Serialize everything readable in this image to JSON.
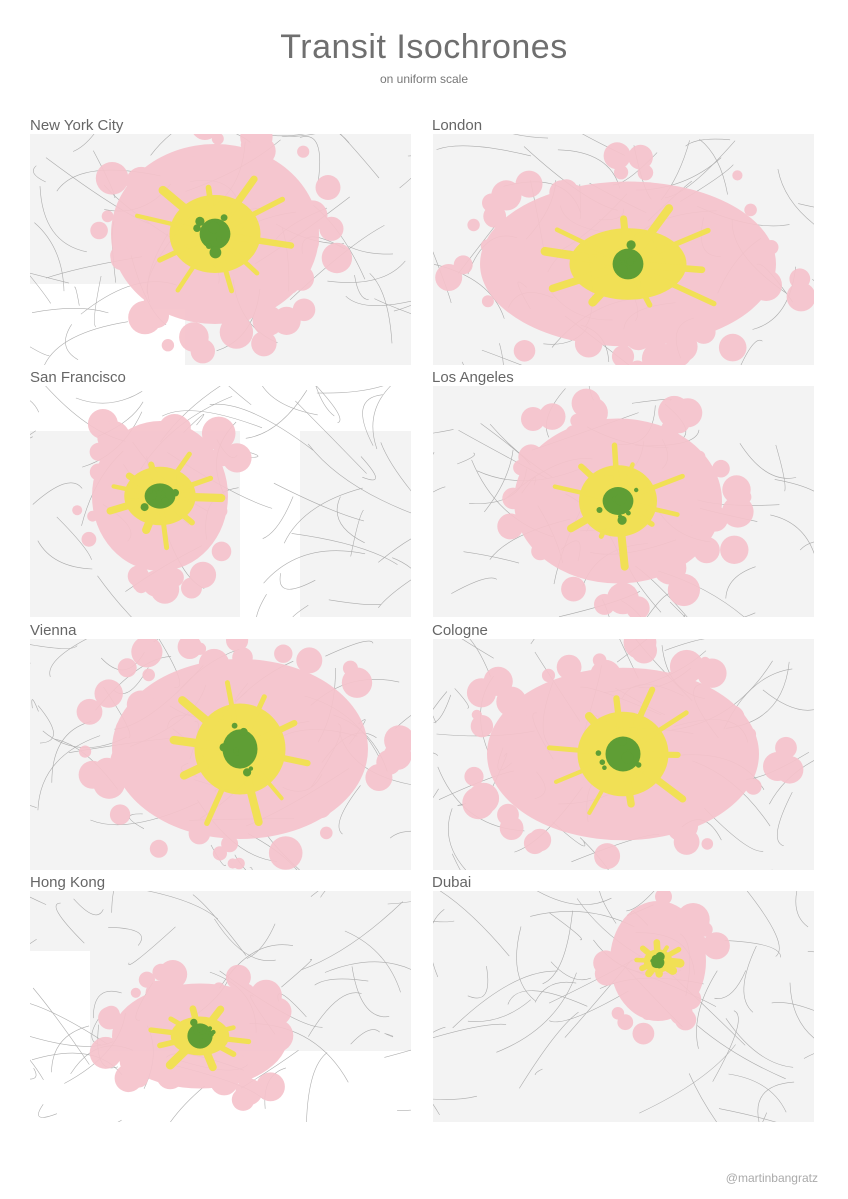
{
  "header": {
    "title": "Transit Isochrones",
    "subtitle": "on uniform scale"
  },
  "colors": {
    "outer_zone": "#f6c3cc",
    "middle_zone": "#f1e24f",
    "inner_zone": "#5f9e35",
    "base_map": "#f3f3f3",
    "roads": "#9a9a9a",
    "water": "#ffffff"
  },
  "maps": [
    {
      "city": "New York City"
    },
    {
      "city": "London"
    },
    {
      "city": "San Francisco"
    },
    {
      "city": "Los Angeles"
    },
    {
      "city": "Vienna"
    },
    {
      "city": "Cologne"
    },
    {
      "city": "Hong Kong"
    },
    {
      "city": "Dubai"
    }
  ],
  "footer": {
    "credit": "@martinbangratz"
  }
}
